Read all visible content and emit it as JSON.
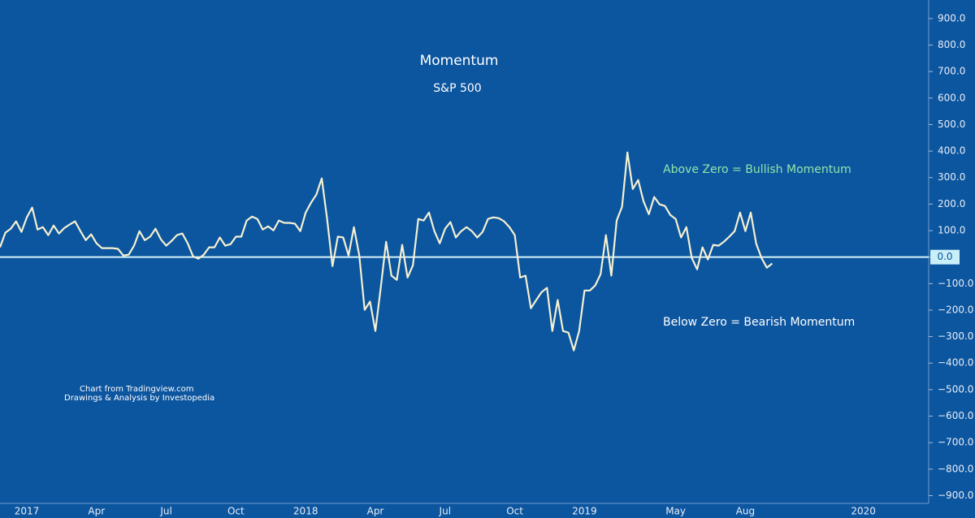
{
  "chart_data": {
    "type": "line",
    "title": "Momentum",
    "subtitle": "S&P 500",
    "annotations": [
      {
        "text": "Above Zero = Bullish Momentum",
        "color": "#8fe6a8"
      },
      {
        "text": "Below Zero = Bearish Momentum",
        "color": "#ffffff"
      }
    ],
    "credits": [
      "Chart from Tradingview.com",
      "Drawings & Analysis by Investopedia"
    ],
    "color": "#f5f1d2",
    "categories": [
      null,
      null,
      null,
      null,
      null,
      "2017",
      null,
      null,
      null,
      null,
      null,
      null,
      null,
      null,
      null,
      null,
      null,
      null,
      "Apr",
      null,
      null,
      null,
      null,
      null,
      null,
      null,
      null,
      null,
      null,
      null,
      null,
      "Jul",
      null,
      null,
      null,
      null,
      null,
      null,
      null,
      null,
      null,
      null,
      null,
      null,
      "Oct",
      null,
      null,
      null,
      null,
      null,
      null,
      null,
      null,
      null,
      null,
      null,
      null,
      "2018",
      null,
      null,
      null,
      null,
      null,
      null,
      null,
      null,
      null,
      null,
      null,
      null,
      "Apr",
      null,
      null,
      null,
      null,
      null,
      null,
      null,
      null,
      null,
      null,
      null,
      null,
      "Jul",
      null,
      null,
      null,
      null,
      null,
      null,
      null,
      null,
      null,
      null,
      null,
      null,
      "Oct",
      null,
      null,
      null,
      null,
      null,
      null,
      null,
      null,
      null,
      null,
      null,
      null,
      "2019",
      null,
      null,
      null,
      null,
      null,
      null,
      null,
      null,
      null,
      null,
      null,
      null,
      null,
      null,
      null,
      null,
      "May",
      null,
      null,
      null,
      null,
      null,
      null,
      null,
      null,
      null,
      null,
      null,
      null,
      "Aug",
      null,
      null,
      null,
      null,
      null,
      null,
      null,
      null,
      null,
      null,
      null,
      null,
      null,
      null,
      null,
      null,
      null,
      null,
      null,
      null,
      null,
      "2020",
      null,
      null,
      null,
      null,
      null,
      null,
      null,
      null,
      null,
      null,
      null
    ],
    "values": [
      37,
      92,
      107,
      135,
      95,
      150,
      187,
      104,
      113,
      83,
      119,
      89,
      110,
      123,
      135,
      98,
      64,
      86,
      52,
      34,
      34,
      34,
      31,
      6,
      9,
      43,
      98,
      64,
      77,
      107,
      67,
      43,
      61,
      83,
      89,
      52,
      3,
      -6,
      9,
      37,
      37,
      74,
      43,
      49,
      77,
      77,
      138,
      153,
      144,
      104,
      116,
      101,
      138,
      129,
      129,
      126,
      98,
      168,
      205,
      236,
      297,
      144,
      -34,
      77,
      74,
      6,
      113,
      6,
      -199,
      -168,
      -279,
      -116,
      58,
      -70,
      -86,
      46,
      -77,
      -31,
      144,
      138,
      168,
      98,
      52,
      107,
      132,
      74,
      98,
      113,
      98,
      74,
      95,
      144,
      150,
      147,
      135,
      113,
      83,
      -77,
      -70,
      -193,
      -162,
      -132,
      -116,
      -279,
      -162,
      -279,
      -285,
      -352,
      -279,
      -126,
      -126,
      -107,
      -64,
      83,
      -70,
      138,
      190,
      395,
      257,
      291,
      211,
      162,
      227,
      199,
      193,
      159,
      144,
      74,
      113,
      -3,
      -46,
      37,
      -9,
      46,
      43,
      58,
      77,
      98,
      168,
      98,
      168,
      52,
      -3,
      -40,
      -24,
      null,
      null,
      null,
      null,
      null,
      null,
      null,
      null,
      null,
      null,
      null,
      null,
      null,
      null,
      null,
      null,
      null,
      null,
      null,
      null,
      null,
      null,
      null,
      null,
      null,
      null,
      null,
      null
    ],
    "ylim": [
      -920,
      970
    ],
    "yticks": [
      {
        "value": -900,
        "label": "−900.0"
      },
      {
        "value": -800,
        "label": "−800.0"
      },
      {
        "value": -700,
        "label": "−700.0"
      },
      {
        "value": -600,
        "label": "−600.0"
      },
      {
        "value": -500,
        "label": "−500.0"
      },
      {
        "value": -400,
        "label": "−400.0"
      },
      {
        "value": -300,
        "label": "−300.0"
      },
      {
        "value": -200,
        "label": "−200.0"
      },
      {
        "value": -100,
        "label": "−100.0"
      },
      {
        "value": 0,
        "label": "0.0"
      },
      {
        "value": 100,
        "label": "100.0"
      },
      {
        "value": 200,
        "label": "200.0"
      },
      {
        "value": 300,
        "label": "300.0"
      },
      {
        "value": 400,
        "label": "400.0"
      },
      {
        "value": 500,
        "label": "500.0"
      },
      {
        "value": 600,
        "label": "600.0"
      },
      {
        "value": 700,
        "label": "700.0"
      },
      {
        "value": 800,
        "label": "800.0"
      },
      {
        "value": 900,
        "label": "900.0"
      }
    ],
    "grid": false
  }
}
